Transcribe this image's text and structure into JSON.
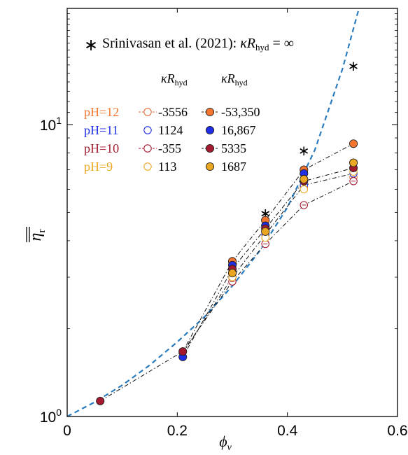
{
  "chart_data": {
    "type": "scatter",
    "title": "",
    "xlabel": "ϕ",
    "xlabel_sub": "v",
    "ylabel": "η",
    "ylabel_sub": "r",
    "xlim": [
      0,
      0.6
    ],
    "ylim": [
      1,
      25
    ],
    "yscale": "log",
    "xticks": [
      0,
      0.2,
      0.4,
      0.6
    ],
    "xtick_labels": [
      "0",
      "0.2",
      "0.4",
      "0.6"
    ],
    "yticks": [
      1,
      10
    ],
    "ytick_labels": [
      {
        "base": "10",
        "exp": "0"
      },
      {
        "base": "10",
        "exp": "1"
      }
    ],
    "annotation": {
      "marker": "∗",
      "text_prefix": "Srinivasan et al. (2021): ",
      "kappa": "κ",
      "R": "R",
      "sub": "hyd",
      "text_suffix": " = ∞"
    },
    "legend_header": {
      "kappa": "κ",
      "R": "R",
      "sub": "hyd"
    },
    "legend_rows": [
      {
        "ph": "pH=12",
        "ph_color": "#f4762e",
        "open_value": "-3556",
        "filled_value": "-53,350"
      },
      {
        "ph": "pH=11",
        "ph_color": "#1f2ee6",
        "open_value": "1124",
        "filled_value": "16,867"
      },
      {
        "ph": "pH=10",
        "ph_color": "#a31a2e",
        "open_value": "-355",
        "filled_value": "5335"
      },
      {
        "ph": "pH=9",
        "ph_color": "#eba722",
        "open_value": "113",
        "filled_value": "1687"
      }
    ],
    "x": [
      0.06,
      0.21,
      0.3,
      0.36,
      0.43,
      0.52
    ],
    "series": [
      {
        "name": "pH=12, κRhyd=-3556",
        "style": "open",
        "color": "#e66a3c",
        "center": true,
        "values": [
          null,
          null,
          3.1,
          4.1,
          6.1,
          6.6
        ]
      },
      {
        "name": "pH=11, κRhyd=1124",
        "style": "open",
        "color": "#1f2ee6",
        "center": false,
        "values": [
          null,
          null,
          3.0,
          4.2,
          6.2,
          6.8
        ]
      },
      {
        "name": "pH=10, κRhyd=-355",
        "style": "open",
        "color": "#a31a2e",
        "center": true,
        "values": [
          null,
          null,
          2.9,
          3.9,
          5.3,
          6.4
        ]
      },
      {
        "name": "pH=9, κRhyd=113",
        "style": "open",
        "color": "#eba722",
        "center": false,
        "values": [
          null,
          null,
          3.0,
          4.1,
          6.0,
          6.9
        ]
      },
      {
        "name": "pH=12, κRhyd=-53,350",
        "style": "filled",
        "color": "#f4762e",
        "center": false,
        "values": [
          null,
          null,
          3.4,
          4.7,
          7.0,
          8.6
        ]
      },
      {
        "name": "pH=11, κRhyd=16,867",
        "style": "filled",
        "color": "#1f2ee6",
        "center": false,
        "values": [
          null,
          1.6,
          3.3,
          4.5,
          6.8,
          null
        ]
      },
      {
        "name": "pH=10, κRhyd=5335",
        "style": "filled",
        "color": "#a31a2e",
        "center": false,
        "values": [
          1.13,
          1.67,
          3.2,
          4.4,
          6.4,
          7.1
        ]
      },
      {
        "name": "pH=9, κRhyd=1687",
        "style": "filled",
        "color": "#eba722",
        "center": false,
        "values": [
          null,
          null,
          3.1,
          4.3,
          6.5,
          7.4
        ]
      }
    ],
    "connector_lines": [
      {
        "x": [
          0.06,
          0.21,
          0.3,
          0.36,
          0.43,
          0.52
        ],
        "values": [
          1.13,
          1.67,
          3.4,
          4.7,
          7.0,
          8.6
        ]
      },
      {
        "x": [
          0.21,
          0.3,
          0.36,
          0.43,
          0.52
        ],
        "values": [
          1.6,
          3.2,
          4.4,
          6.4,
          7.1
        ]
      },
      {
        "x": [
          0.21,
          0.3,
          0.36,
          0.43,
          0.52
        ],
        "values": [
          1.65,
          3.0,
          4.2,
          6.2,
          6.8
        ]
      },
      {
        "x": [
          0.21,
          0.3,
          0.36,
          0.43,
          0.52
        ],
        "values": [
          1.67,
          2.9,
          3.9,
          5.3,
          6.4
        ]
      }
    ],
    "reference_points": {
      "marker": "∗",
      "x": [
        0.36,
        0.43,
        0.52
      ],
      "values": [
        5.0,
        8.2,
        16.0
      ]
    },
    "dashed_curve": {
      "color": "#2a7bbd",
      "x": [
        0,
        0.05,
        0.1,
        0.15,
        0.2,
        0.25,
        0.3,
        0.35,
        0.4,
        0.45,
        0.5,
        0.53
      ],
      "values": [
        1.0,
        1.12,
        1.28,
        1.5,
        1.8,
        2.2,
        2.8,
        3.7,
        5.2,
        8.2,
        15.5,
        25
      ]
    },
    "grid": false,
    "legend_position": "top-left"
  }
}
